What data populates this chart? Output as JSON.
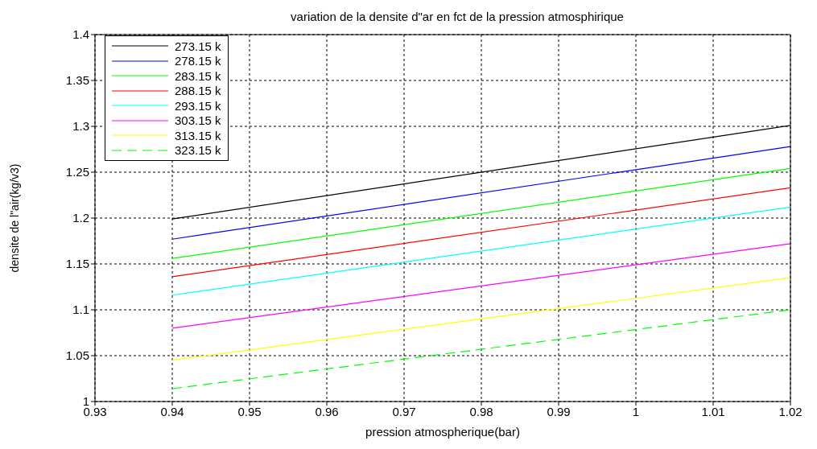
{
  "chart_data": {
    "type": "line",
    "title": "variation de la densite d\"ar en fct de la pression atmosphirique",
    "xlabel": "pression atmospherique(bar)",
    "ylabel": "densite de l\"air(kg/v3)",
    "xlim": [
      0.93,
      1.02
    ],
    "xticks": [
      0.93,
      0.94,
      0.95,
      0.96,
      0.97,
      0.98,
      0.99,
      1,
      1.01,
      1.02
    ],
    "ylim": [
      1,
      1.4
    ],
    "yticks": [
      1,
      1.05,
      1.1,
      1.15,
      1.2,
      1.25,
      1.3,
      1.35,
      1.4
    ],
    "grid": true,
    "legend": "top left",
    "marker": "none",
    "x": [
      0.94,
      1.02
    ],
    "series": [
      {
        "name": "273.15 k",
        "color": "#000000",
        "values": [
          1.199,
          1.301
        ]
      },
      {
        "name": "278.15 k",
        "color": "#0000ff",
        "values": [
          1.177,
          1.278
        ]
      },
      {
        "name": "283.15 k",
        "color": "#00ff00",
        "values": [
          1.156,
          1.254
        ]
      },
      {
        "name": "288.15 k",
        "color": "#ff0000",
        "values": [
          1.136,
          1.233
        ]
      },
      {
        "name": "293.15 k",
        "color": "#00ffff",
        "values": [
          1.116,
          1.212
        ]
      },
      {
        "name": "303.15 k",
        "color": "#ff00ff",
        "values": [
          1.08,
          1.172
        ]
      },
      {
        "name": "313.15 k",
        "color": "#ffff00",
        "values": [
          1.045,
          1.135
        ]
      },
      {
        "name": "323.15 k",
        "color": "#00ff00",
        "values": [
          1.014,
          1.1
        ],
        "line_style": "dashed"
      }
    ]
  }
}
